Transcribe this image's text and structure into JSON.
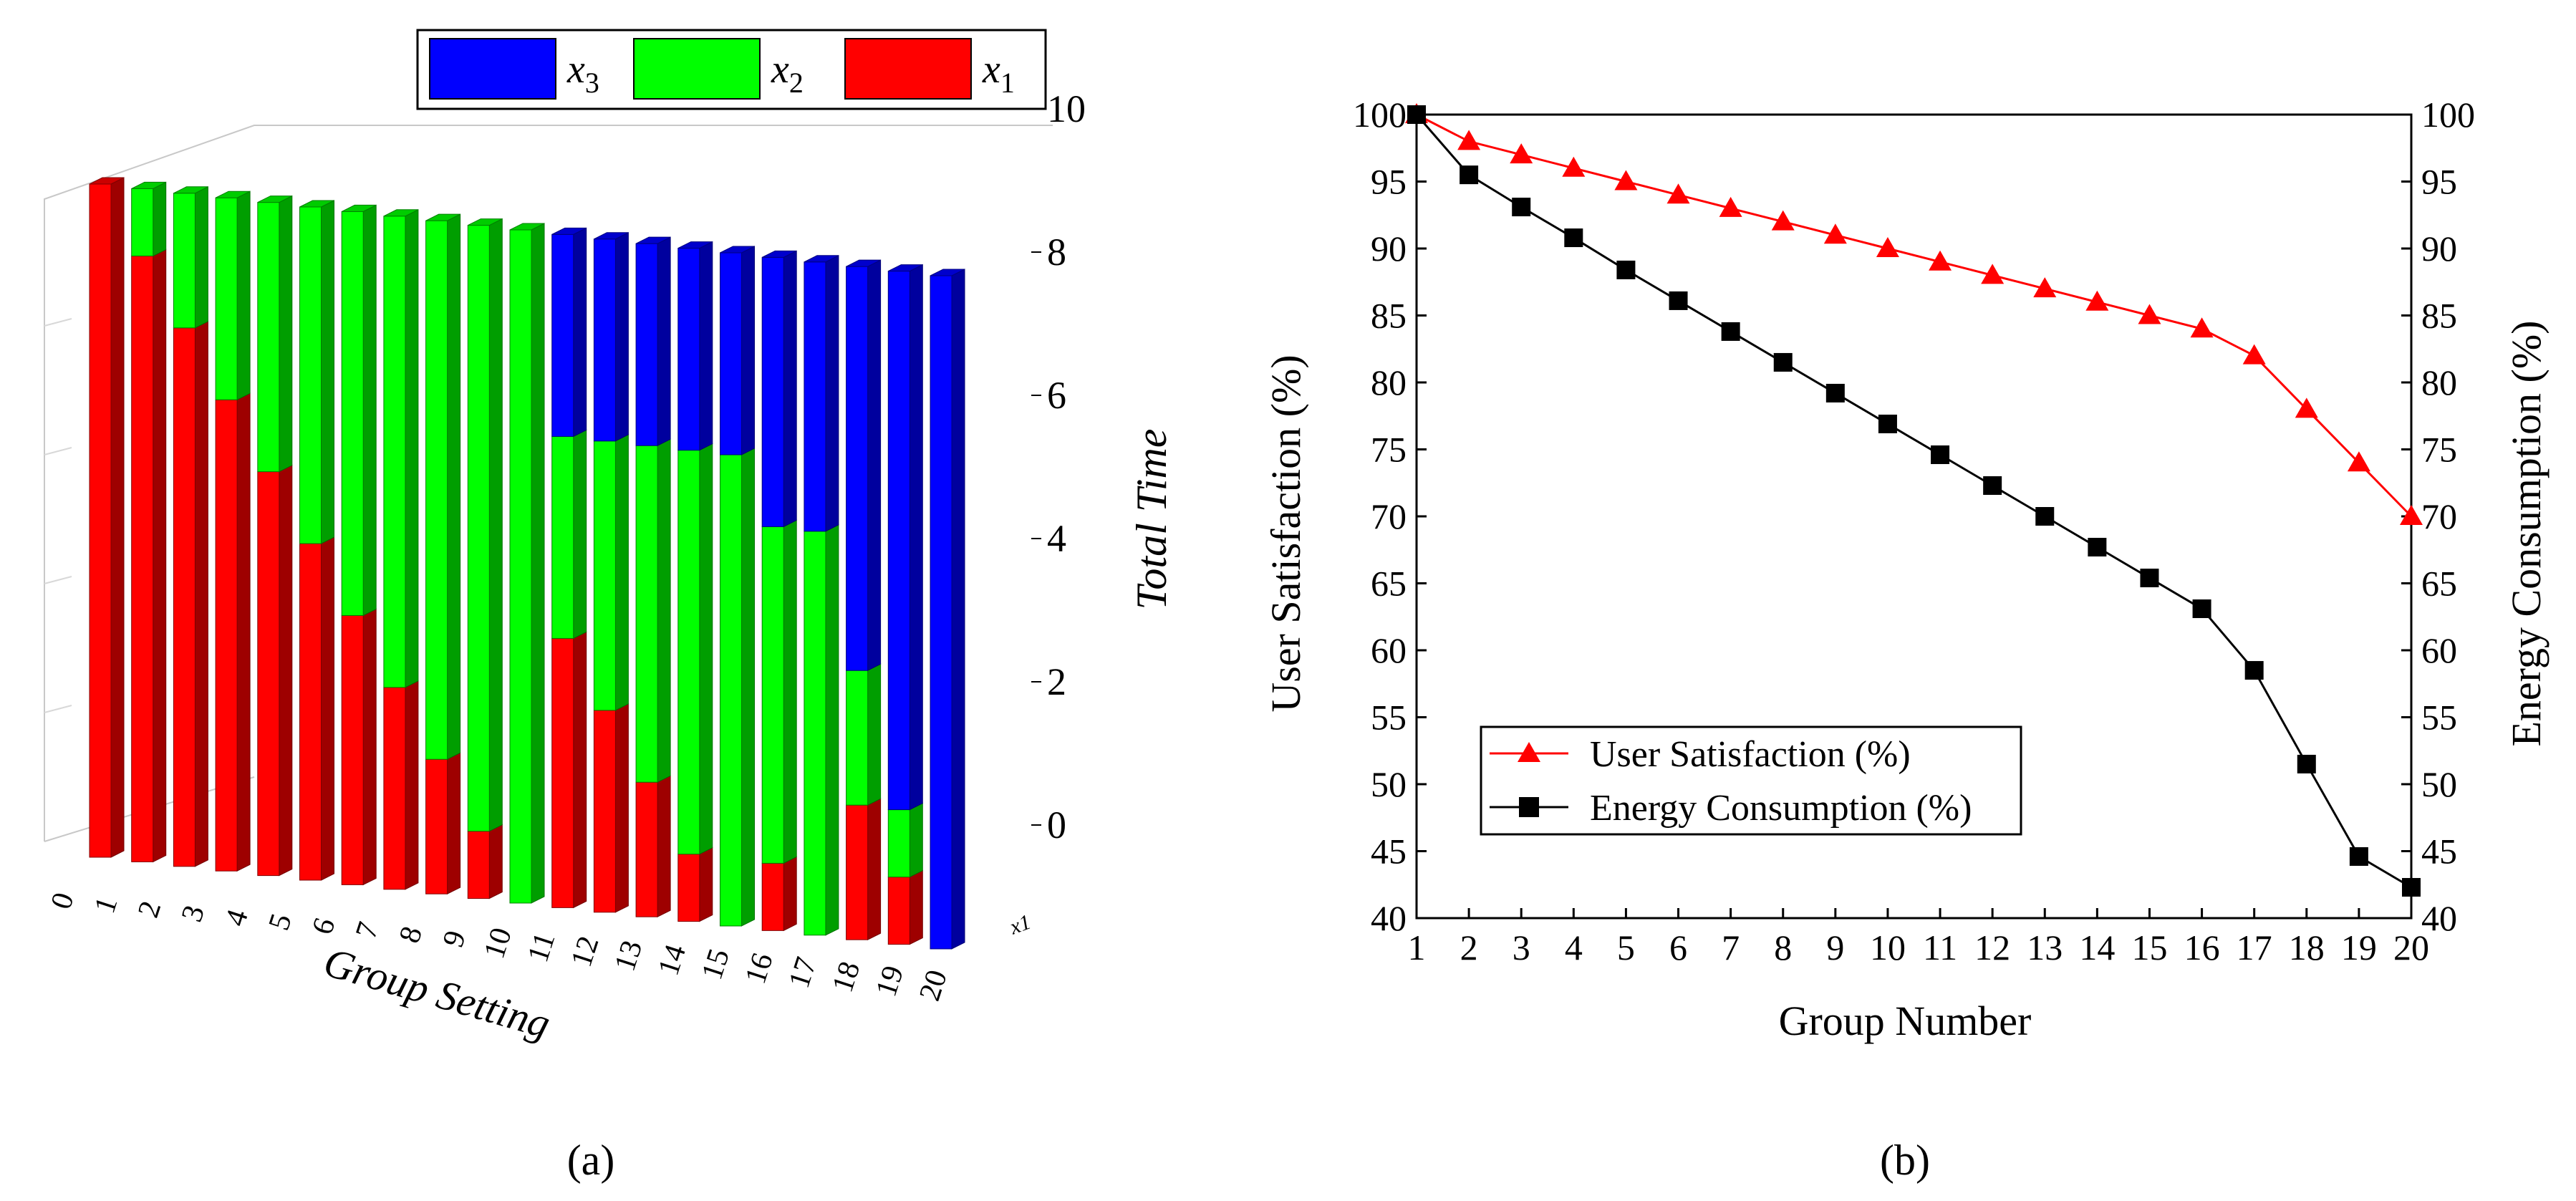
{
  "colors": {
    "x1": "#ff0000",
    "x2": "#00ff00",
    "x3": "#0000ff",
    "satisfaction": "#ff0000",
    "energy": "#000000",
    "frame": "#000000"
  },
  "panel_labels": {
    "a": "(a)",
    "b": "(b)"
  },
  "chart_data": [
    {
      "type": "bar",
      "subtype": "3d-stacked-bar",
      "panel": "(a)",
      "xlabel": "Group Setting",
      "ylabel": "Total Time",
      "depth_axis_label": "x1",
      "z_ticks": [
        "0",
        "2",
        "4",
        "6",
        "8",
        "10"
      ],
      "zlim": [
        0,
        10
      ],
      "categories": [
        "0",
        "1",
        "2",
        "3",
        "4",
        "5",
        "6",
        "7",
        "8",
        "9",
        "10",
        "11",
        "12",
        "13",
        "14",
        "15",
        "16",
        "17",
        "18",
        "19",
        "20"
      ],
      "legend": [
        {
          "key": "x3",
          "base": "x",
          "sub": "3"
        },
        {
          "key": "x2",
          "base": "x",
          "sub": "2"
        },
        {
          "key": "x1",
          "base": "x",
          "sub": "1"
        }
      ],
      "series": [
        {
          "name": "x1",
          "values": [
            10,
            9,
            8,
            7,
            6,
            5,
            4,
            3,
            2,
            1,
            0,
            4,
            3,
            2,
            1,
            0,
            1,
            0,
            2,
            1,
            0
          ]
        },
        {
          "name": "x2",
          "values": [
            0,
            1,
            2,
            3,
            4,
            5,
            6,
            7,
            8,
            9,
            10,
            3,
            4,
            5,
            6,
            7,
            5,
            6,
            2,
            1,
            0
          ]
        },
        {
          "name": "x3",
          "values": [
            0,
            0,
            0,
            0,
            0,
            0,
            0,
            0,
            0,
            0,
            0,
            3,
            3,
            3,
            3,
            3,
            4,
            4,
            6,
            8,
            10
          ]
        }
      ]
    },
    {
      "type": "line",
      "panel": "(b)",
      "xlabel": "Group Number",
      "ylabel": "User Satisfaction (%)",
      "y2label": "Energy Consumption (%)",
      "x": [
        1,
        2,
        3,
        4,
        5,
        6,
        7,
        8,
        9,
        10,
        11,
        12,
        13,
        14,
        15,
        16,
        17,
        18,
        19,
        20
      ],
      "xlim": [
        1,
        20
      ],
      "ylim": [
        40,
        100
      ],
      "y2lim": [
        40,
        100
      ],
      "y_ticks": [
        40,
        45,
        50,
        55,
        60,
        65,
        70,
        75,
        80,
        85,
        90,
        95,
        100
      ],
      "legend_position": "lower-left",
      "series": [
        {
          "name": "User Satisfaction (%)",
          "axis": "left",
          "marker": "triangle",
          "color_key": "satisfaction",
          "values": [
            100,
            98,
            97,
            96,
            95,
            94,
            93,
            92,
            91,
            90,
            89,
            88,
            87,
            86,
            85,
            84,
            82,
            78,
            74,
            70
          ]
        },
        {
          "name": "Energy Consumption (%)",
          "axis": "right",
          "marker": "square",
          "color_key": "energy",
          "values": [
            100,
            95.5,
            93.1,
            90.8,
            88.4,
            86.1,
            83.8,
            81.5,
            79.2,
            76.9,
            74.6,
            72.3,
            70.0,
            67.7,
            65.4,
            63.1,
            58.5,
            51.5,
            44.6,
            42.3
          ]
        }
      ]
    }
  ]
}
